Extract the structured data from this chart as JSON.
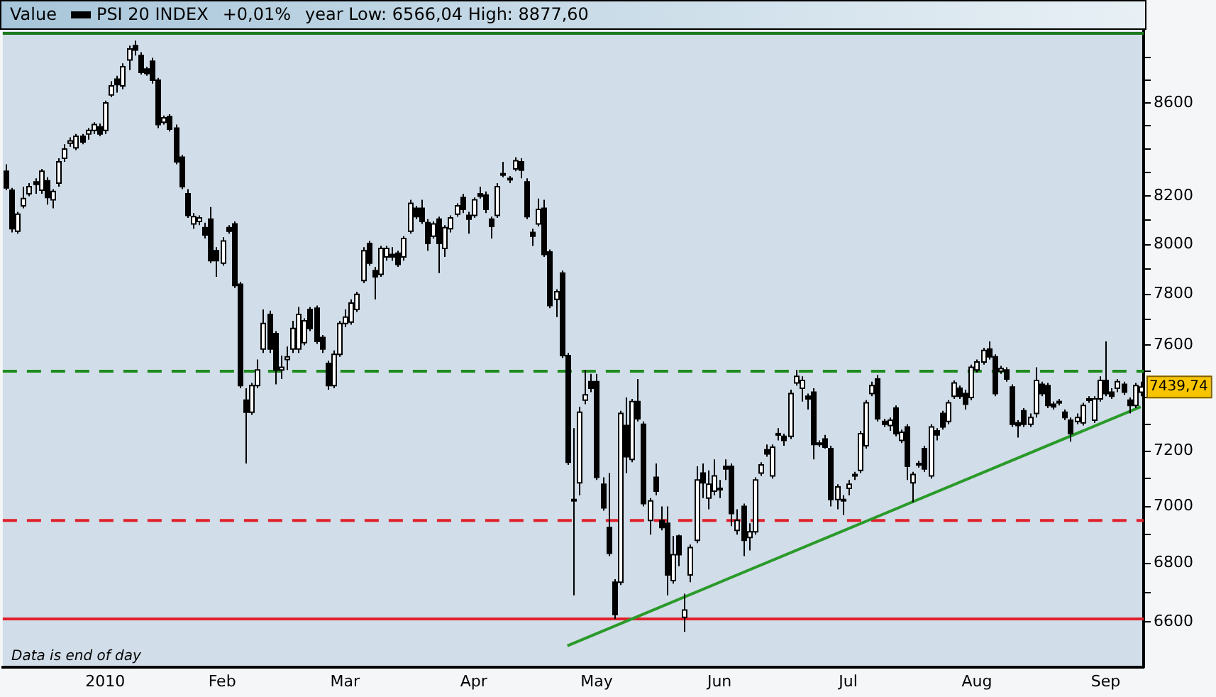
{
  "chart_data": {
    "type": "candlestick",
    "legend_title": "Value",
    "legend": "top left",
    "log": true,
    "annotations": [
      "+0,01%",
      "year Low: 6566,04 High: 8877,60",
      "Data is end of day",
      "7439,74"
    ],
    "categories": [
      null,
      null,
      null,
      null,
      null,
      null,
      null,
      null,
      null,
      null,
      null,
      null,
      null,
      null,
      null,
      null,
      null,
      "2010",
      null,
      null,
      null,
      null,
      null,
      null,
      null,
      null,
      null,
      null,
      null,
      null,
      null,
      null,
      null,
      null,
      null,
      null,
      null,
      "Feb",
      null,
      null,
      null,
      null,
      null,
      null,
      null,
      null,
      null,
      null,
      null,
      null,
      null,
      null,
      null,
      null,
      null,
      null,
      null,
      null,
      "Mar",
      null,
      null,
      null,
      null,
      null,
      null,
      null,
      null,
      null,
      null,
      null,
      null,
      null,
      null,
      null,
      null,
      null,
      null,
      null,
      null,
      null,
      "Apr",
      null,
      null,
      null,
      null,
      null,
      null,
      null,
      null,
      null,
      null,
      null,
      null,
      null,
      null,
      null,
      null,
      null,
      null,
      null,
      null,
      "May",
      null,
      null,
      null,
      null,
      null,
      null,
      null,
      null,
      null,
      null,
      null,
      null,
      null,
      null,
      null,
      null,
      null,
      null,
      null,
      null,
      "Jun",
      null,
      null,
      null,
      null,
      null,
      null,
      null,
      null,
      null,
      null,
      null,
      null,
      null,
      null,
      null,
      null,
      null,
      null,
      null,
      null,
      null,
      "Jul",
      null,
      null,
      null,
      null,
      null,
      null,
      null,
      null,
      null,
      null,
      null,
      null,
      null,
      null,
      null,
      null,
      null,
      null,
      null,
      null,
      null,
      "Aug",
      null,
      null,
      null,
      null,
      null,
      null,
      null,
      null,
      null,
      null,
      null,
      null,
      null,
      null,
      null,
      null,
      null,
      null,
      null,
      null,
      null,
      "Sep",
      null,
      null,
      null,
      null,
      null,
      null
    ],
    "ylim": [
      6450,
      8920
    ],
    "yticks": [
      6600,
      {
        "value": 6700,
        "label": null
      },
      6800,
      {
        "value": 6900,
        "label": null
      },
      7000,
      {
        "value": 7100,
        "label": null
      },
      7200,
      {
        "value": 7300,
        "label": null
      },
      {
        "value": 7400,
        "label": null
      },
      {
        "value": 7500,
        "label": null
      },
      7600,
      {
        "value": 7700,
        "label": null
      },
      7800,
      {
        "value": 7900,
        "label": null
      },
      8000,
      {
        "value": 8100,
        "label": null
      },
      8200,
      {
        "value": 8300,
        "label": null
      },
      {
        "value": 8400,
        "label": null
      },
      {
        "value": 8500,
        "label": null
      },
      8600,
      {
        "value": 8700,
        "label": null
      },
      {
        "value": 8800,
        "label": null
      }
    ],
    "ref_lines": [
      {
        "axis": "y",
        "value": 8910,
        "color": "#1e7a1e",
        "line_style": "solid"
      },
      {
        "axis": "y",
        "value": 7500,
        "color": "#1e8c1e",
        "line_style": "dashed"
      },
      {
        "axis": "y",
        "value": 6950,
        "color": "#e0202a",
        "line_style": "dashed"
      },
      {
        "axis": "y",
        "value": 6610,
        "color": "#e0202a",
        "line_style": "solid"
      }
    ],
    "series": [
      {
        "name": "PSI 20 INDEX",
        "color": "#000000",
        "colors": [
          "#000000",
          "#000000",
          "#ffffff",
          "#ffffff",
          "#ffffff",
          "#000000",
          "#ffffff",
          "#000000",
          "#ffffff",
          "#ffffff",
          "#ffffff",
          "#ffffff",
          "#ffffff",
          "#000000",
          "#ffffff",
          "#ffffff",
          "#000000",
          "#ffffff",
          "#ffffff",
          "#000000",
          "#ffffff",
          "#ffffff",
          "#000000",
          "#000000",
          "#000000",
          "#000000",
          "#000000",
          "#ffffff",
          "#000000",
          "#000000",
          "#000000",
          "#000000",
          "#ffffff",
          "#ffffff",
          "#000000",
          "#000000",
          "#000000",
          "#ffffff",
          "#000000",
          "#000000",
          "#000000",
          "#000000",
          "#ffffff",
          "#ffffff",
          "#ffffff",
          "#000000",
          "#000000",
          "#ffffff",
          "#ffffff",
          "#ffffff",
          "#ffffff",
          "#ffffff",
          "#000000",
          "#000000",
          "#000000",
          "#000000",
          "#ffffff",
          "#ffffff",
          "#ffffff",
          "#ffffff",
          "#ffffff",
          "#ffffff",
          "#000000",
          "#000000",
          "#ffffff",
          "#ffffff",
          "#000000",
          "#000000",
          "#ffffff",
          "#ffffff",
          "#000000",
          "#000000",
          "#000000",
          "#ffffff",
          "#000000",
          "#ffffff",
          "#ffffff",
          "#ffffff",
          "#000000",
          "#000000",
          "#ffffff",
          "#000000",
          "#000000",
          "#000000",
          "#ffffff",
          "#ffffff",
          "#ffffff",
          "#ffffff",
          "#000000",
          "#000000",
          "#000000",
          "#ffffff",
          "#000000",
          "#000000",
          "#ffffff",
          "#000000",
          "#000000",
          "#000000",
          "#ffffff",
          "#ffffff",
          "#000000",
          "#000000",
          "#000000",
          "#000000",
          "#000000",
          "#ffffff",
          "#000000",
          "#ffffff",
          "#000000",
          "#000000",
          "#ffffff",
          "#000000",
          "#000000",
          "#000000",
          "#ffffff",
          "#000000",
          "#ffffff",
          "#ffffff",
          "#ffffff",
          "#000000",
          "#ffffff",
          "#ffffff",
          "#ffffff",
          "#000000",
          "#000000",
          "#ffffff",
          "#000000",
          "#ffffff",
          "#ffffff",
          "#ffffff",
          "#000000",
          "#ffffff",
          "#000000",
          "#000000",
          "#ffffff",
          "#ffffff",
          "#ffffff",
          "#000000",
          "#000000",
          "#ffffff",
          "#000000",
          "#000000",
          "#ffffff",
          "#000000",
          "#ffffff",
          "#ffffff",
          "#ffffff",
          "#ffffff",
          "#ffffff",
          "#000000",
          "#000000",
          "#ffffff",
          "#000000",
          "#ffffff",
          "#000000",
          "#ffffff",
          "#ffffff",
          "#000000",
          "#ffffff",
          "#000000",
          "#000000",
          "#ffffff",
          "#ffffff",
          "#000000",
          "#000000",
          "#ffffff",
          "#ffffff",
          "#ffffff",
          "#000000",
          "#000000",
          "#ffffff",
          "#000000",
          "#000000",
          "#000000",
          "#000000",
          "#ffffff",
          "#ffffff",
          "#000000",
          "#000000",
          "#000000",
          "#ffffff",
          "#000000",
          "#000000",
          "#ffffff",
          "#ffffff",
          "#ffffff",
          "#ffffff",
          "#ffffff",
          "#000000",
          "#000000",
          "#ffffff",
          "#000000",
          "#000000",
          "#ffffff",
          "#ffffff"
        ],
        "ohlc": [
          [
            8305,
            8335,
            8225,
            8235
          ],
          [
            8225,
            8235,
            8050,
            8065
          ],
          [
            8055,
            8135,
            8045,
            8125
          ],
          [
            8160,
            8240,
            8150,
            8190
          ],
          [
            8210,
            8255,
            8200,
            8240
          ],
          [
            8260,
            8275,
            8210,
            8250
          ],
          [
            8225,
            8315,
            8210,
            8305
          ],
          [
            8265,
            8280,
            8165,
            8195
          ],
          [
            8185,
            8230,
            8150,
            8220
          ],
          [
            8255,
            8360,
            8240,
            8345
          ],
          [
            8360,
            8420,
            8345,
            8400
          ],
          [
            8425,
            8450,
            8410,
            8435
          ],
          [
            8405,
            8465,
            8395,
            8455
          ],
          [
            8455,
            8465,
            8420,
            8430
          ],
          [
            8465,
            8490,
            8440,
            8480
          ],
          [
            8480,
            8515,
            8465,
            8505
          ],
          [
            8495,
            8510,
            8455,
            8465
          ],
          [
            8480,
            8610,
            8465,
            8600
          ],
          [
            8635,
            8695,
            8625,
            8675
          ],
          [
            8705,
            8720,
            8645,
            8680
          ],
          [
            8675,
            8775,
            8660,
            8760
          ],
          [
            8790,
            8855,
            8745,
            8840
          ],
          [
            8855,
            8877.6,
            8810,
            8835
          ],
          [
            8810,
            8825,
            8725,
            8735
          ],
          [
            8750,
            8760,
            8720,
            8730
          ],
          [
            8785,
            8800,
            8685,
            8700
          ],
          [
            8700,
            8710,
            8490,
            8505
          ],
          [
            8515,
            8545,
            8505,
            8535
          ],
          [
            8540,
            8550,
            8475,
            8485
          ],
          [
            8490,
            8505,
            8335,
            8345
          ],
          [
            8365,
            8375,
            8230,
            8240
          ],
          [
            8210,
            8230,
            8110,
            8120
          ],
          [
            8085,
            8130,
            8065,
            8115
          ],
          [
            8095,
            8120,
            8080,
            8110
          ],
          [
            8070,
            8090,
            8025,
            8040
          ],
          [
            8105,
            8155,
            7925,
            7935
          ],
          [
            7975,
            7990,
            7870,
            7935
          ],
          [
            7925,
            8030,
            7915,
            8015
          ],
          [
            8070,
            8080,
            8045,
            8055
          ],
          [
            8085,
            8095,
            7825,
            7835
          ],
          [
            7840,
            7850,
            7435,
            7445
          ],
          [
            7390,
            7435,
            7155,
            7345
          ],
          [
            7345,
            7455,
            7335,
            7445
          ],
          [
            7445,
            7545,
            7435,
            7505
          ],
          [
            7585,
            7740,
            7570,
            7685
          ],
          [
            7720,
            7735,
            7570,
            7585
          ],
          [
            7645,
            7655,
            7450,
            7505
          ],
          [
            7505,
            7560,
            7470,
            7515
          ],
          [
            7545,
            7595,
            7505,
            7555
          ],
          [
            7585,
            7695,
            7570,
            7665
          ],
          [
            7585,
            7750,
            7570,
            7720
          ],
          [
            7610,
            7705,
            7600,
            7695
          ],
          [
            7740,
            7750,
            7655,
            7665
          ],
          [
            7745,
            7755,
            7605,
            7615
          ],
          [
            7630,
            7640,
            7570,
            7585
          ],
          [
            7530,
            7540,
            7430,
            7445
          ],
          [
            7445,
            7580,
            7435,
            7565
          ],
          [
            7565,
            7695,
            7555,
            7685
          ],
          [
            7685,
            7740,
            7670,
            7710
          ],
          [
            7690,
            7780,
            7680,
            7765
          ],
          [
            7740,
            7810,
            7730,
            7800
          ],
          [
            7855,
            7990,
            7845,
            7975
          ],
          [
            8005,
            8015,
            7915,
            7925
          ],
          [
            7895,
            7910,
            7780,
            7870
          ],
          [
            7880,
            7995,
            7870,
            7985
          ],
          [
            7950,
            7995,
            7935,
            7985
          ],
          [
            7960,
            7990,
            7935,
            7950
          ],
          [
            7965,
            7975,
            7910,
            7920
          ],
          [
            7950,
            8035,
            7935,
            8025
          ],
          [
            8055,
            8185,
            8045,
            8170
          ],
          [
            8150,
            8160,
            8105,
            8115
          ],
          [
            8150,
            8185,
            8085,
            8095
          ],
          [
            8090,
            8105,
            7975,
            8005
          ],
          [
            8035,
            8095,
            8025,
            8085
          ],
          [
            8105,
            8115,
            7885,
            8005
          ],
          [
            7985,
            8080,
            7950,
            8070
          ],
          [
            8065,
            8120,
            8050,
            8110
          ],
          [
            8125,
            8170,
            8115,
            8160
          ],
          [
            8195,
            8210,
            8130,
            8145
          ],
          [
            8120,
            8135,
            8045,
            8105
          ],
          [
            8120,
            8195,
            8110,
            8185
          ],
          [
            8210,
            8240,
            8190,
            8200
          ],
          [
            8205,
            8220,
            8130,
            8145
          ],
          [
            8105,
            8115,
            8025,
            8075
          ],
          [
            8120,
            8255,
            8110,
            8240
          ],
          [
            8290,
            8345,
            8280,
            8295
          ],
          [
            8270,
            8285,
            8255,
            8275
          ],
          [
            8315,
            8365,
            8305,
            8350
          ],
          [
            8345,
            8360,
            8275,
            8310
          ],
          [
            8260,
            8275,
            8105,
            8115
          ],
          [
            8050,
            8065,
            7995,
            8035
          ],
          [
            8085,
            8190,
            8075,
            8145
          ],
          [
            8150,
            8185,
            7950,
            7960
          ],
          [
            7970,
            7980,
            7745,
            7755
          ],
          [
            7780,
            7820,
            7710,
            7810
          ],
          [
            7885,
            7895,
            7550,
            7560
          ],
          [
            7560,
            7570,
            7150,
            7160
          ],
          [
            7025,
            7285,
            6690,
            7020
          ],
          [
            7085,
            7365,
            7040,
            7345
          ],
          [
            7390,
            7505,
            7375,
            7410
          ],
          [
            7460,
            7490,
            7420,
            7435
          ],
          [
            7460,
            7490,
            7095,
            7105
          ],
          [
            7080,
            7105,
            6985,
            6995
          ],
          [
            6925,
            7120,
            6825,
            6835
          ],
          [
            6735,
            6745,
            6610,
            6625
          ],
          [
            6735,
            7350,
            6725,
            7340
          ],
          [
            7295,
            7400,
            7120,
            7180
          ],
          [
            7170,
            7395,
            7160,
            7385
          ],
          [
            7385,
            7470,
            7310,
            7320
          ],
          [
            7300,
            7310,
            7000,
            7010
          ],
          [
            6950,
            7030,
            6900,
            7020
          ],
          [
            7105,
            7155,
            7040,
            7055
          ],
          [
            6950,
            7000,
            6915,
            6925
          ],
          [
            6940,
            7000,
            6690,
            6760
          ],
          [
            6740,
            6895,
            6730,
            6830
          ],
          [
            6895,
            6900,
            6790,
            6830
          ],
          [
            6615,
            6695,
            6566.04,
            6640
          ],
          [
            6760,
            6865,
            6735,
            6855
          ],
          [
            6880,
            7145,
            6870,
            7095
          ],
          [
            7120,
            7155,
            7030,
            7085
          ],
          [
            7030,
            7130,
            6990,
            7080
          ],
          [
            7055,
            7170,
            7040,
            7110
          ],
          [
            7060,
            7095,
            7030,
            7065
          ],
          [
            7145,
            7170,
            7095,
            7135
          ],
          [
            7145,
            7155,
            6930,
            6975
          ],
          [
            6915,
            6990,
            6900,
            6950
          ],
          [
            7000,
            7010,
            6825,
            6880
          ],
          [
            6890,
            6940,
            6845,
            6910
          ],
          [
            6910,
            7105,
            6900,
            7095
          ],
          [
            7120,
            7160,
            7110,
            7150
          ],
          [
            7205,
            7225,
            7180,
            7190
          ],
          [
            7110,
            7225,
            7100,
            7215
          ],
          [
            7265,
            7285,
            7240,
            7260
          ],
          [
            7255,
            7265,
            7220,
            7240
          ],
          [
            7255,
            7430,
            7245,
            7415
          ],
          [
            7455,
            7505,
            7445,
            7480
          ],
          [
            7435,
            7480,
            7385,
            7465
          ],
          [
            7405,
            7415,
            7355,
            7395
          ],
          [
            7420,
            7435,
            7170,
            7225
          ],
          [
            7225,
            7240,
            7215,
            7230
          ],
          [
            7245,
            7260,
            7210,
            7215
          ],
          [
            7210,
            7220,
            7000,
            7025
          ],
          [
            7025,
            7080,
            6990,
            7070
          ],
          [
            7025,
            7040,
            6970,
            7020
          ],
          [
            7065,
            7095,
            7040,
            7080
          ],
          [
            7110,
            7125,
            7095,
            7115
          ],
          [
            7130,
            7275,
            7120,
            7265
          ],
          [
            7220,
            7390,
            7210,
            7380
          ],
          [
            7415,
            7460,
            7405,
            7445
          ],
          [
            7470,
            7485,
            7310,
            7320
          ],
          [
            7310,
            7320,
            7290,
            7300
          ],
          [
            7295,
            7325,
            7275,
            7315
          ],
          [
            7360,
            7370,
            7255,
            7265
          ],
          [
            7240,
            7280,
            7230,
            7270
          ],
          [
            7290,
            7300,
            7095,
            7145
          ],
          [
            7085,
            7125,
            7015,
            7115
          ],
          [
            7150,
            7165,
            7140,
            7155
          ],
          [
            7210,
            7220,
            7125,
            7135
          ],
          [
            7110,
            7300,
            7100,
            7290
          ],
          [
            7275,
            7285,
            7240,
            7260
          ],
          [
            7340,
            7350,
            7280,
            7290
          ],
          [
            7310,
            7390,
            7300,
            7380
          ],
          [
            7405,
            7465,
            7395,
            7455
          ],
          [
            7435,
            7445,
            7395,
            7405
          ],
          [
            7415,
            7430,
            7355,
            7375
          ],
          [
            7400,
            7525,
            7390,
            7515
          ],
          [
            7505,
            7545,
            7495,
            7535
          ],
          [
            7535,
            7590,
            7525,
            7580
          ],
          [
            7585,
            7615,
            7545,
            7555
          ],
          [
            7555,
            7565,
            7405,
            7415
          ],
          [
            7500,
            7520,
            7490,
            7510
          ],
          [
            7505,
            7515,
            7460,
            7470
          ],
          [
            7440,
            7450,
            7290,
            7300
          ],
          [
            7305,
            7315,
            7250,
            7295
          ],
          [
            7350,
            7360,
            7290,
            7300
          ],
          [
            7300,
            7340,
            7290,
            7325
          ],
          [
            7340,
            7515,
            7325,
            7465
          ],
          [
            7450,
            7460,
            7405,
            7415
          ],
          [
            7445,
            7455,
            7360,
            7370
          ],
          [
            7375,
            7385,
            7355,
            7365
          ],
          [
            7380,
            7395,
            7370,
            7385
          ],
          [
            7345,
            7355,
            7315,
            7325
          ],
          [
            7315,
            7325,
            7235,
            7265
          ],
          [
            7310,
            7340,
            7300,
            7325
          ],
          [
            7305,
            7380,
            7295,
            7370
          ],
          [
            7390,
            7405,
            7380,
            7395
          ],
          [
            7315,
            7405,
            7305,
            7395
          ],
          [
            7395,
            7480,
            7385,
            7465
          ],
          [
            7465,
            7615,
            7405,
            7415
          ],
          [
            7420,
            7435,
            7395,
            7405
          ],
          [
            7435,
            7470,
            7420,
            7460
          ],
          [
            7450,
            7460,
            7410,
            7420
          ],
          [
            7390,
            7400,
            7340,
            7370
          ],
          [
            7370,
            7455,
            7360,
            7445
          ],
          [
            7420,
            7460,
            7405,
            7439.74
          ]
        ]
      },
      {
        "type": "line",
        "color": "#2a9a2a",
        "values": [
          null,
          null,
          null,
          null,
          null,
          null,
          null,
          null,
          null,
          null,
          null,
          null,
          null,
          null,
          null,
          null,
          null,
          null,
          null,
          null,
          null,
          null,
          null,
          null,
          null,
          null,
          null,
          null,
          null,
          null,
          null,
          null,
          null,
          null,
          null,
          null,
          null,
          null,
          null,
          null,
          null,
          null,
          null,
          null,
          null,
          null,
          null,
          null,
          null,
          null,
          null,
          null,
          null,
          null,
          null,
          null,
          null,
          null,
          null,
          null,
          null,
          null,
          null,
          null,
          null,
          null,
          null,
          null,
          null,
          null,
          null,
          null,
          null,
          null,
          null,
          null,
          null,
          null,
          null,
          null,
          null,
          null,
          null,
          null,
          null,
          null,
          null,
          null,
          null,
          null,
          null,
          null,
          null,
          null,
          null,
          null,
          6520,
          null,
          null,
          null,
          null,
          null,
          null,
          null,
          null,
          null,
          null,
          null,
          null,
          null,
          null,
          null,
          null,
          null,
          null,
          null,
          null,
          null,
          null,
          null,
          null,
          null,
          null,
          null,
          null,
          null,
          null,
          null,
          null,
          null,
          null,
          null,
          null,
          null,
          null,
          null,
          null,
          null,
          null,
          null,
          null,
          null,
          null,
          null,
          null,
          null,
          null,
          null,
          null,
          null,
          null,
          null,
          null,
          null,
          null,
          null,
          null,
          null,
          null,
          null,
          null,
          null,
          null,
          null,
          null,
          null,
          null,
          null,
          null,
          null,
          null,
          null,
          null,
          null,
          null,
          null,
          null,
          null,
          null,
          null,
          null,
          null,
          null,
          null,
          null,
          null,
          null,
          null,
          null,
          null,
          null,
          null,
          null,
          null,
          7365
        ]
      }
    ]
  }
}
